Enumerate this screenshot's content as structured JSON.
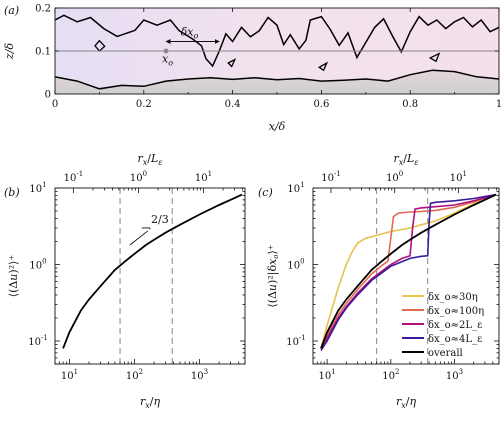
{
  "chart_data": [
    {
      "panel": "(a)",
      "type": "contour",
      "xlabel": "x/δ",
      "ylabel": "z/δ",
      "xlim": [
        0,
        1
      ],
      "ylim": [
        0,
        0.2
      ],
      "xticks": [
        "0",
        "0.2",
        "0.4",
        "0.6",
        "0.8",
        "1"
      ],
      "yticks": [
        "0",
        "0.1",
        "0.2"
      ],
      "annotations": {
        "point": "x_o",
        "arrow": "δx_o"
      },
      "reference_line_z": 0.1,
      "point": {
        "x": 0.25,
        "z": 0.1
      },
      "arrow_x": [
        0.25,
        0.37
      ],
      "upper_interface": [
        [
          0,
          0.172
        ],
        [
          0.02,
          0.183
        ],
        [
          0.05,
          0.168
        ],
        [
          0.08,
          0.178
        ],
        [
          0.11,
          0.152
        ],
        [
          0.14,
          0.134
        ],
        [
          0.18,
          0.148
        ],
        [
          0.2,
          0.172
        ],
        [
          0.23,
          0.16
        ],
        [
          0.26,
          0.172
        ],
        [
          0.28,
          0.147
        ],
        [
          0.31,
          0.128
        ],
        [
          0.33,
          0.112
        ],
        [
          0.34,
          0.082
        ],
        [
          0.355,
          0.065
        ],
        [
          0.37,
          0.1
        ],
        [
          0.385,
          0.14
        ],
        [
          0.4,
          0.122
        ],
        [
          0.42,
          0.155
        ],
        [
          0.44,
          0.133
        ],
        [
          0.46,
          0.147
        ],
        [
          0.48,
          0.178
        ],
        [
          0.5,
          0.16
        ],
        [
          0.515,
          0.115
        ],
        [
          0.53,
          0.138
        ],
        [
          0.55,
          0.105
        ],
        [
          0.565,
          0.125
        ],
        [
          0.575,
          0.172
        ],
        [
          0.6,
          0.18
        ],
        [
          0.62,
          0.15
        ],
        [
          0.64,
          0.113
        ],
        [
          0.66,
          0.142
        ],
        [
          0.68,
          0.085
        ],
        [
          0.7,
          0.12
        ],
        [
          0.72,
          0.155
        ],
        [
          0.74,
          0.175
        ],
        [
          0.76,
          0.135
        ],
        [
          0.78,
          0.098
        ],
        [
          0.8,
          0.145
        ],
        [
          0.82,
          0.18
        ],
        [
          0.84,
          0.16
        ],
        [
          0.86,
          0.172
        ],
        [
          0.88,
          0.152
        ],
        [
          0.9,
          0.168
        ],
        [
          0.92,
          0.178
        ],
        [
          0.94,
          0.156
        ],
        [
          0.96,
          0.172
        ],
        [
          0.98,
          0.145
        ],
        [
          1,
          0.155
        ]
      ],
      "lower_interface": [
        [
          0,
          0.04
        ],
        [
          0.05,
          0.03
        ],
        [
          0.1,
          0.012
        ],
        [
          0.15,
          0.02
        ],
        [
          0.2,
          0.018
        ],
        [
          0.25,
          0.03
        ],
        [
          0.3,
          0.035
        ],
        [
          0.35,
          0.038
        ],
        [
          0.4,
          0.034
        ],
        [
          0.45,
          0.038
        ],
        [
          0.5,
          0.033
        ],
        [
          0.55,
          0.036
        ],
        [
          0.6,
          0.03
        ],
        [
          0.65,
          0.032
        ],
        [
          0.7,
          0.035
        ],
        [
          0.75,
          0.03
        ],
        [
          0.8,
          0.045
        ],
        [
          0.85,
          0.055
        ],
        [
          0.9,
          0.052
        ],
        [
          0.95,
          0.04
        ],
        [
          1,
          0.035
        ]
      ],
      "loops": [
        [
          [
            0.09,
            0.112
          ],
          [
            0.1,
            0.124
          ],
          [
            0.112,
            0.111
          ],
          [
            0.1,
            0.1
          ]
        ],
        [
          [
            0.39,
            0.072
          ],
          [
            0.405,
            0.08
          ],
          [
            0.398,
            0.064
          ]
        ],
        [
          [
            0.595,
            0.062
          ],
          [
            0.612,
            0.072
          ],
          [
            0.605,
            0.055
          ]
        ],
        [
          [
            0.845,
            0.084
          ],
          [
            0.865,
            0.094
          ],
          [
            0.858,
            0.076
          ]
        ]
      ]
    },
    {
      "panel": "(b)",
      "type": "line",
      "xscale": "log",
      "yscale": "log",
      "xlim": [
        6,
        5000
      ],
      "ylim": [
        0.05,
        10
      ],
      "xlabel": "r_x/η",
      "ylabel": "⟨(Δu)²⟩⁺",
      "top_xlabel": "r_x/L_ε",
      "x_ticklabels": [
        "10",
        "10",
        "10"
      ],
      "x_tickexp": [
        "1",
        "2",
        "3"
      ],
      "y_ticklabels": [
        "10",
        "10",
        "10"
      ],
      "y_tickexp": [
        "-1",
        "0",
        "1"
      ],
      "top_ticklabels": [
        "10",
        "10",
        "10"
      ],
      "top_tickexp": [
        "-1",
        "0",
        "1"
      ],
      "top_tick_positions": [
        11.5,
        115,
        1150
      ],
      "vlines": [
        60,
        380
      ],
      "slope_label": "2/3",
      "slope_triangle": {
        "x": [
          85,
          160
        ],
        "y0": 1.8
      },
      "series": [
        {
          "color": "#000000",
          "x": [
            8,
            10,
            15,
            20,
            30,
            50,
            70,
            100,
            150,
            200,
            300,
            500,
            1000,
            2000,
            3000,
            4500
          ],
          "y": [
            0.08,
            0.13,
            0.25,
            0.35,
            0.52,
            0.85,
            1.08,
            1.38,
            1.8,
            2.1,
            2.6,
            3.3,
            4.5,
            6.0,
            7.0,
            8.2
          ]
        }
      ]
    },
    {
      "panel": "(c)",
      "type": "line",
      "xscale": "log",
      "yscale": "log",
      "xlim": [
        6,
        5000
      ],
      "ylim": [
        0.05,
        10
      ],
      "xlabel": "r_x/η",
      "ylabel": "⟨(Δu)²|δx_o⟩⁺",
      "top_xlabel": "r_x/L_ε",
      "x_ticklabels": [
        "10",
        "10",
        "10"
      ],
      "x_tickexp": [
        "1",
        "2",
        "3"
      ],
      "y_ticklabels": [
        "10",
        "10",
        "10"
      ],
      "y_tickexp": [
        "-1",
        "0",
        "1"
      ],
      "top_ticklabels": [
        "10",
        "10",
        "10"
      ],
      "top_tickexp": [
        "-1",
        "0",
        "1"
      ],
      "top_tick_positions": [
        11.5,
        115,
        1150
      ],
      "vlines": [
        60,
        380
      ],
      "legend_position": "lower-right",
      "series": [
        {
          "name": "δx_o≈30η",
          "color": "#e8c24a",
          "x": [
            8,
            10,
            15,
            20,
            25,
            30,
            40,
            60,
            100,
            200,
            300,
            500,
            1000,
            2000,
            4500
          ],
          "y": [
            0.08,
            0.16,
            0.5,
            1.0,
            1.5,
            1.9,
            2.2,
            2.4,
            2.7,
            3.0,
            3.3,
            3.7,
            4.7,
            6.2,
            8.2
          ]
        },
        {
          "name": "δx_o≈100η",
          "color": "#e06c50",
          "x": [
            8,
            10,
            15,
            20,
            30,
            50,
            70,
            90,
            100,
            110,
            130,
            200,
            300,
            500,
            1000,
            2000,
            4500
          ],
          "y": [
            0.08,
            0.12,
            0.22,
            0.31,
            0.47,
            0.75,
            0.95,
            1.1,
            2.2,
            4.2,
            4.7,
            4.85,
            4.95,
            5.1,
            5.6,
            6.6,
            8.2
          ]
        },
        {
          "name": "δx_o≈2L_ε",
          "color": "#b0107e",
          "x": [
            8,
            10,
            15,
            20,
            30,
            50,
            100,
            150,
            200,
            220,
            240,
            300,
            500,
            1000,
            2000,
            4500
          ],
          "y": [
            0.08,
            0.11,
            0.2,
            0.28,
            0.42,
            0.65,
            1.0,
            1.2,
            1.3,
            3.0,
            5.3,
            5.5,
            5.7,
            6.0,
            6.8,
            8.2
          ]
        },
        {
          "name": "δx_o≈4L_ε",
          "color": "#3a1a9a",
          "x": [
            8,
            10,
            15,
            20,
            30,
            50,
            100,
            200,
            300,
            380,
            400,
            420,
            500,
            1000,
            2000,
            4500
          ],
          "y": [
            0.075,
            0.1,
            0.19,
            0.27,
            0.4,
            0.62,
            0.95,
            1.2,
            1.28,
            1.3,
            3.5,
            6.3,
            6.5,
            6.8,
            7.3,
            8.2
          ]
        },
        {
          "name": "overall",
          "color": "#000000",
          "x": [
            8,
            10,
            15,
            20,
            30,
            50,
            70,
            100,
            150,
            200,
            300,
            500,
            1000,
            2000,
            3000,
            4500
          ],
          "y": [
            0.08,
            0.13,
            0.25,
            0.35,
            0.52,
            0.85,
            1.08,
            1.38,
            1.8,
            2.1,
            2.6,
            3.3,
            4.5,
            6.0,
            7.0,
            8.2
          ]
        }
      ]
    }
  ]
}
